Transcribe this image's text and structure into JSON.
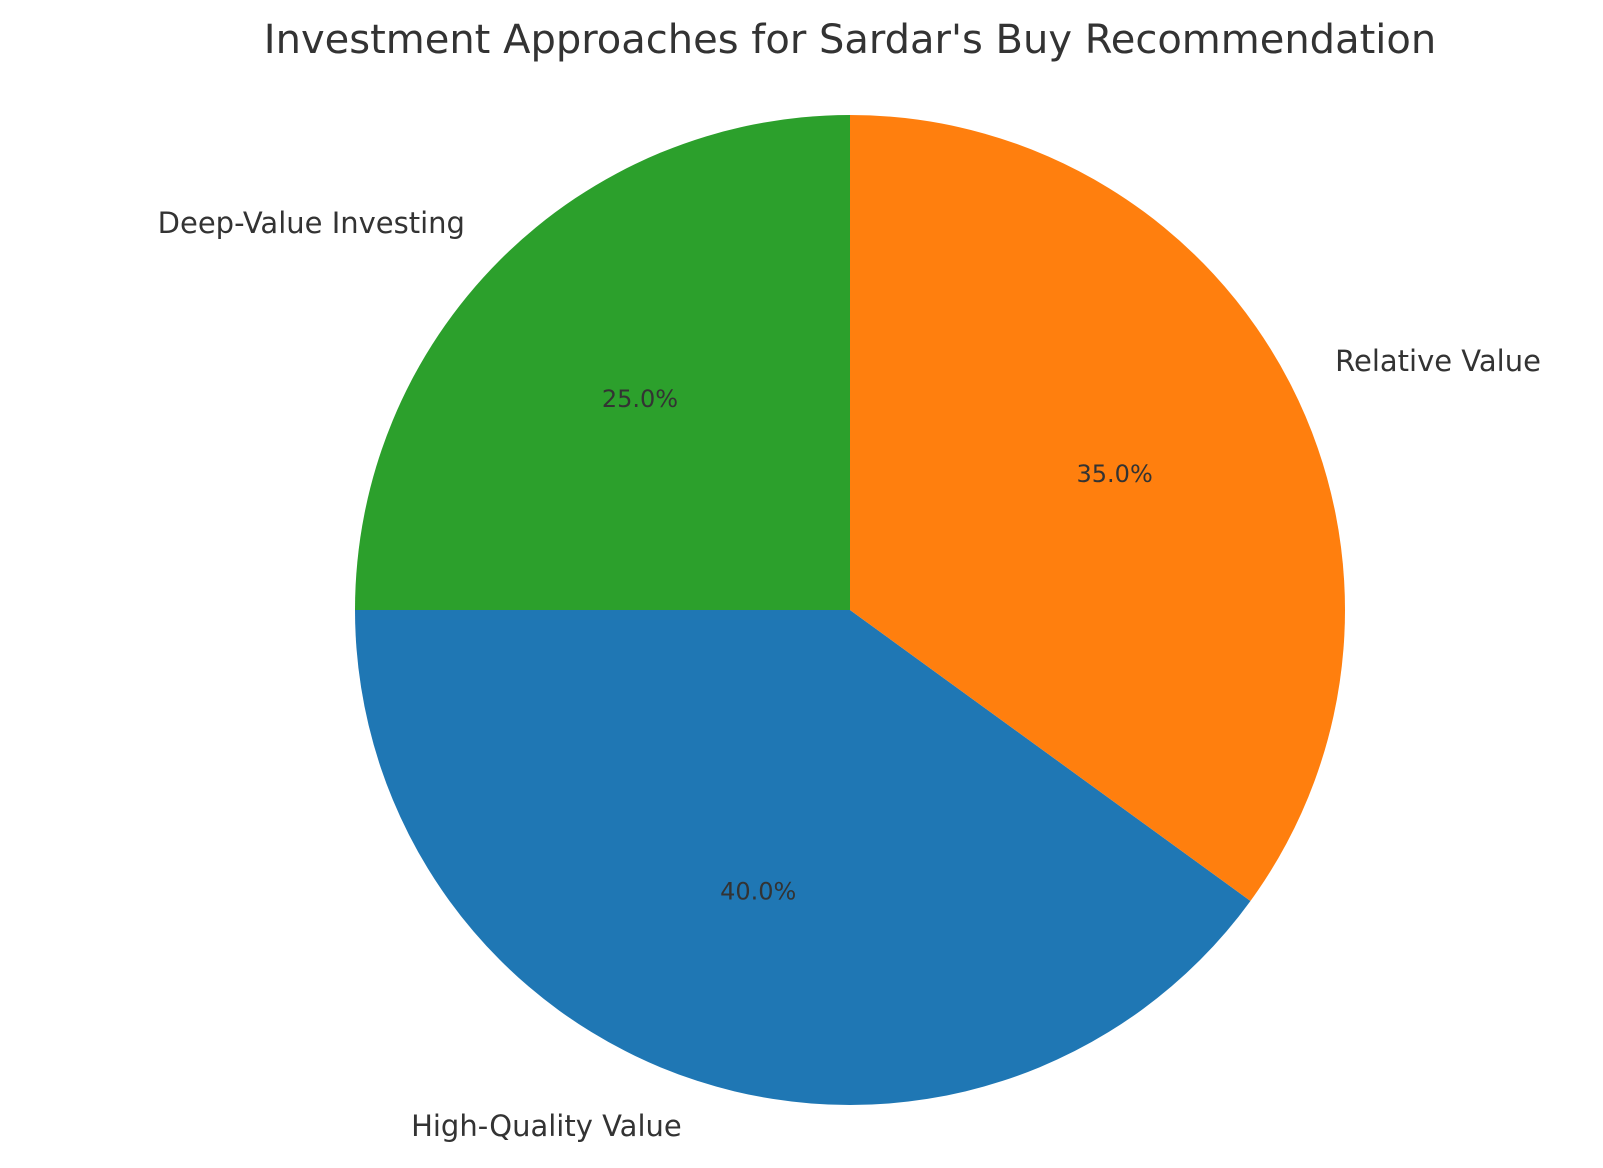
{
  "chart_data": {
    "type": "pie",
    "title": "Investment Approaches for Sardar's Buy Recommendation",
    "slices": [
      {
        "label": "Deep-Value Investing",
        "value": 25.0,
        "pct_label": "25.0%",
        "color": "#2ca02c"
      },
      {
        "label": "High-Quality Value",
        "value": 40.0,
        "pct_label": "40.0%",
        "color": "#1f77b4"
      },
      {
        "label": "Relative Value",
        "value": 35.0,
        "pct_label": "35.0%",
        "color": "#ff7f0e"
      }
    ],
    "start_angle_deg": 90,
    "direction": "counterclockwise"
  }
}
